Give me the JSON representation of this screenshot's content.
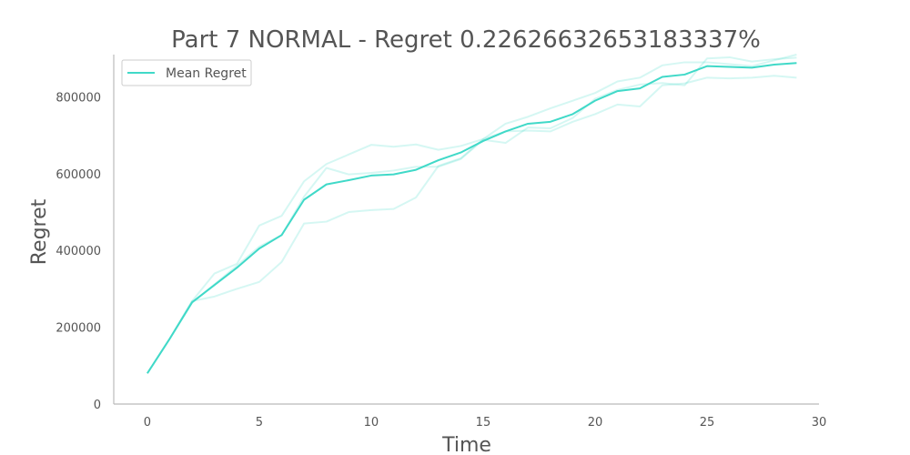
{
  "chart_data": {
    "type": "line",
    "title": "Part 7 NORMAL - Regret 0.22626632653183337%",
    "xlabel": "Time",
    "ylabel": "Regret",
    "xlim": [
      -1.5,
      30
    ],
    "ylim": [
      0,
      910000
    ],
    "x_ticks": [
      0,
      5,
      10,
      15,
      20,
      25,
      30
    ],
    "y_ticks": [
      0,
      200000,
      400000,
      600000,
      800000
    ],
    "grid": false,
    "legend": {
      "placement": "top-left",
      "entries": [
        "Mean Regret"
      ]
    },
    "colors": {
      "mean": "#40d9c8",
      "runs": "#40d9c8"
    },
    "x": [
      0,
      1,
      2,
      3,
      4,
      5,
      6,
      7,
      8,
      9,
      10,
      11,
      12,
      13,
      14,
      15,
      16,
      17,
      18,
      19,
      20,
      21,
      22,
      23,
      24,
      25,
      26,
      27,
      28,
      29
    ],
    "series": [
      {
        "name": "Mean Regret",
        "role": "mean",
        "values": [
          80000,
          170000,
          265000,
          310000,
          355000,
          405000,
          440000,
          532000,
          572000,
          583000,
          595000,
          598000,
          610000,
          635000,
          655000,
          685000,
          710000,
          730000,
          735000,
          755000,
          790000,
          815000,
          822000,
          852000,
          858000,
          880000,
          878000,
          876000,
          884000,
          888000
        ]
      },
      {
        "role": "run",
        "values": [
          80000,
          170000,
          268000,
          340000,
          365000,
          465000,
          490000,
          580000,
          625000,
          650000,
          675000,
          670000,
          676000,
          662000,
          672000,
          690000,
          730000,
          748000,
          770000,
          790000,
          810000,
          840000,
          850000,
          882000,
          890000,
          890000,
          885000,
          880000,
          895000,
          910000
        ]
      },
      {
        "role": "run",
        "values": [
          80000,
          170000,
          264000,
          312000,
          360000,
          410000,
          440000,
          540000,
          615000,
          598000,
          602000,
          608000,
          618000,
          618000,
          638000,
          688000,
          680000,
          720000,
          718000,
          745000,
          795000,
          818000,
          832000,
          836000,
          830000,
          900000,
          903000,
          892000,
          898000,
          902000
        ]
      },
      {
        "role": "run",
        "values": [
          80000,
          170000,
          268000,
          280000,
          300000,
          318000,
          370000,
          470000,
          475000,
          500000,
          505000,
          508000,
          538000,
          620000,
          640000,
          690000,
          710000,
          712000,
          710000,
          735000,
          755000,
          780000,
          775000,
          830000,
          835000,
          850000,
          848000,
          850000,
          855000,
          850000
        ]
      }
    ]
  }
}
